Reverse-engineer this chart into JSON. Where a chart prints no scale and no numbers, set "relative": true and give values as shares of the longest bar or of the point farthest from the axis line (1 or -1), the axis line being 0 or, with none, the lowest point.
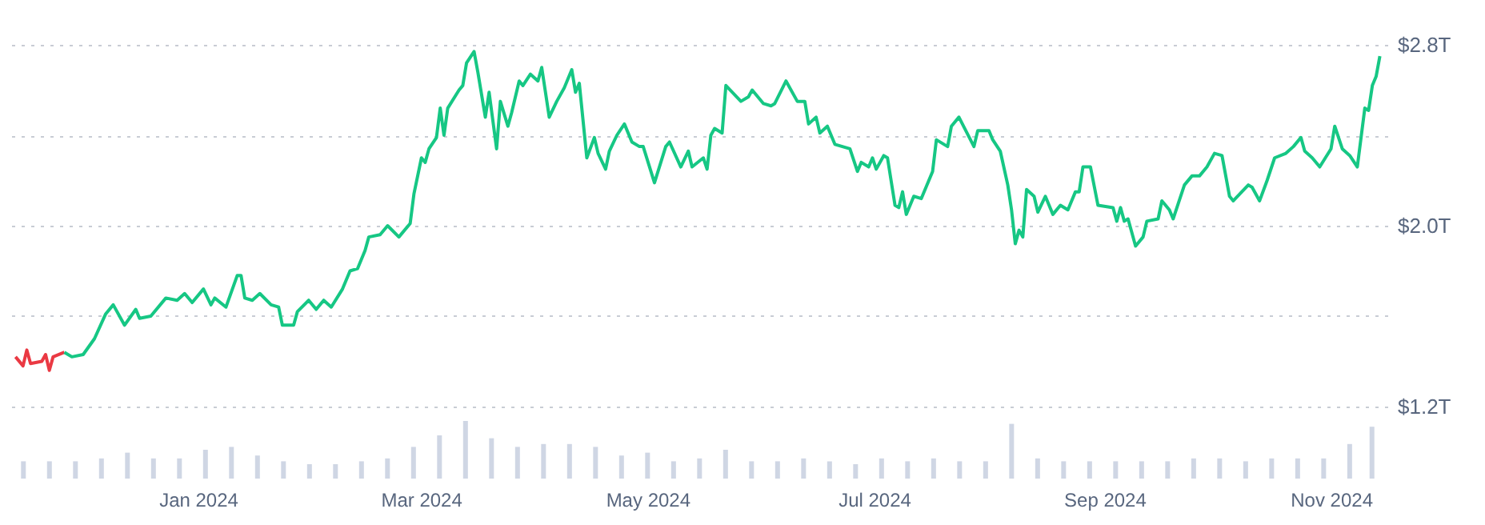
{
  "chart_data": [
    {
      "type": "line",
      "xlim": [
        "2023-11-13",
        "2024-11-14"
      ],
      "ylim": [
        1.2,
        2.8
      ],
      "yticks": [
        {
          "value": 1.2,
          "label": "$1.2T"
        },
        {
          "value": 1.6,
          "label": null
        },
        {
          "value": 2.0,
          "label": "$2.0T"
        },
        {
          "value": 2.4,
          "label": null
        },
        {
          "value": 2.8,
          "label": "$2.8T"
        }
      ],
      "grid": "y",
      "tick_labels": "y",
      "series": [
        {
          "color": "#ea3943",
          "x": [
            "2023-11-15",
            "2023-11-17",
            "2023-11-18",
            "2023-11-19",
            "2023-11-22",
            "2023-11-23",
            "2023-11-24",
            "2023-11-25",
            "2023-11-28"
          ],
          "values": [
            1.42,
            1.38,
            1.45,
            1.39,
            1.4,
            1.43,
            1.36,
            1.42,
            1.44
          ]
        },
        {
          "color": "#16c784",
          "x": [
            "2023-11-28",
            "2023-11-30",
            "2023-12-03",
            "2023-12-06",
            "2023-12-09",
            "2023-12-11",
            "2023-12-14",
            "2023-12-17",
            "2023-12-18",
            "2023-12-21",
            "2023-12-25",
            "2023-12-28",
            "2023-12-30",
            "2024-01-01",
            "2024-01-04",
            "2024-01-06",
            "2024-01-07",
            "2024-01-10",
            "2024-01-13",
            "2024-01-14",
            "2024-01-15",
            "2024-01-17",
            "2024-01-19",
            "2024-01-22",
            "2024-01-24",
            "2024-01-25",
            "2024-01-28",
            "2024-01-29",
            "2024-02-01",
            "2024-02-03",
            "2024-02-05",
            "2024-02-07",
            "2024-02-10",
            "2024-02-12",
            "2024-02-14",
            "2024-02-16",
            "2024-02-17",
            "2024-02-20",
            "2024-02-22",
            "2024-02-25",
            "2024-02-28",
            "2024-02-29",
            "2024-03-02",
            "2024-03-03",
            "2024-03-04",
            "2024-03-06",
            "2024-03-07",
            "2024-03-08",
            "2024-03-09",
            "2024-03-12",
            "2024-03-13",
            "2024-03-14",
            "2024-03-16",
            "2024-03-17",
            "2024-03-19",
            "2024-03-20",
            "2024-03-22",
            "2024-03-23",
            "2024-03-25",
            "2024-03-26",
            "2024-03-28",
            "2024-03-29",
            "2024-03-31",
            "2024-04-02",
            "2024-04-03",
            "2024-04-05",
            "2024-04-07",
            "2024-04-09",
            "2024-04-11",
            "2024-04-12",
            "2024-04-13",
            "2024-04-15",
            "2024-04-17",
            "2024-04-18",
            "2024-04-20",
            "2024-04-21",
            "2024-04-23",
            "2024-04-25",
            "2024-04-27",
            "2024-04-29",
            "2024-04-30",
            "2024-05-03",
            "2024-05-06",
            "2024-05-07",
            "2024-05-10",
            "2024-05-12",
            "2024-05-13",
            "2024-05-16",
            "2024-05-17",
            "2024-05-18",
            "2024-05-19",
            "2024-05-21",
            "2024-05-22",
            "2024-05-26",
            "2024-05-28",
            "2024-05-29",
            "2024-06-01",
            "2024-06-03",
            "2024-06-04",
            "2024-06-07",
            "2024-06-10",
            "2024-06-12",
            "2024-06-13",
            "2024-06-15",
            "2024-06-16",
            "2024-06-18",
            "2024-06-20",
            "2024-06-24",
            "2024-06-26",
            "2024-06-27",
            "2024-06-29",
            "2024-06-30",
            "2024-07-01",
            "2024-07-03",
            "2024-07-04",
            "2024-07-06",
            "2024-07-07",
            "2024-07-08",
            "2024-07-09",
            "2024-07-11",
            "2024-07-13",
            "2024-07-16",
            "2024-07-17",
            "2024-07-20",
            "2024-07-21",
            "2024-07-23",
            "2024-07-27",
            "2024-07-28",
            "2024-07-31",
            "2024-08-01",
            "2024-08-03",
            "2024-08-05",
            "2024-08-06",
            "2024-08-07",
            "2024-08-08",
            "2024-08-09",
            "2024-08-10",
            "2024-08-12",
            "2024-08-13",
            "2024-08-15",
            "2024-08-17",
            "2024-08-19",
            "2024-08-21",
            "2024-08-23",
            "2024-08-24",
            "2024-08-25",
            "2024-08-27",
            "2024-08-29",
            "2024-09-02",
            "2024-09-03",
            "2024-09-04",
            "2024-09-05",
            "2024-09-06",
            "2024-09-08",
            "2024-09-10",
            "2024-09-11",
            "2024-09-14",
            "2024-09-15",
            "2024-09-17",
            "2024-09-18",
            "2024-09-21",
            "2024-09-23",
            "2024-09-25",
            "2024-09-27",
            "2024-09-29",
            "2024-10-01",
            "2024-10-03",
            "2024-10-04",
            "2024-10-08",
            "2024-10-09",
            "2024-10-11",
            "2024-10-13",
            "2024-10-15",
            "2024-10-18",
            "2024-10-20",
            "2024-10-22",
            "2024-10-23",
            "2024-10-25",
            "2024-10-27",
            "2024-10-30",
            "2024-10-31",
            "2024-11-02",
            "2024-11-04",
            "2024-11-06",
            "2024-11-08",
            "2024-11-09",
            "2024-11-10",
            "2024-11-11",
            "2024-11-12"
          ],
          "values": [
            1.44,
            1.42,
            1.43,
            1.5,
            1.61,
            1.65,
            1.56,
            1.63,
            1.59,
            1.6,
            1.68,
            1.67,
            1.7,
            1.66,
            1.72,
            1.65,
            1.68,
            1.64,
            1.78,
            1.78,
            1.68,
            1.67,
            1.7,
            1.65,
            1.64,
            1.56,
            1.56,
            1.62,
            1.67,
            1.63,
            1.67,
            1.64,
            1.72,
            1.8,
            1.81,
            1.89,
            1.95,
            1.96,
            2.0,
            1.95,
            2.01,
            2.14,
            2.3,
            2.28,
            2.34,
            2.39,
            2.52,
            2.4,
            2.52,
            2.6,
            2.62,
            2.72,
            2.77,
            2.68,
            2.48,
            2.59,
            2.34,
            2.55,
            2.44,
            2.5,
            2.64,
            2.62,
            2.67,
            2.64,
            2.7,
            2.48,
            2.55,
            2.61,
            2.69,
            2.59,
            2.63,
            2.3,
            2.39,
            2.32,
            2.25,
            2.33,
            2.4,
            2.45,
            2.37,
            2.35,
            2.35,
            2.19,
            2.35,
            2.37,
            2.26,
            2.33,
            2.26,
            2.3,
            2.25,
            2.4,
            2.43,
            2.41,
            2.62,
            2.55,
            2.57,
            2.6,
            2.54,
            2.53,
            2.54,
            2.64,
            2.55,
            2.55,
            2.45,
            2.48,
            2.41,
            2.44,
            2.36,
            2.34,
            2.24,
            2.28,
            2.26,
            2.3,
            2.25,
            2.31,
            2.3,
            2.09,
            2.08,
            2.15,
            2.05,
            2.13,
            2.12,
            2.24,
            2.38,
            2.35,
            2.44,
            2.48,
            2.35,
            2.42,
            2.42,
            2.38,
            2.33,
            2.18,
            2.07,
            1.92,
            1.98,
            1.95,
            2.16,
            2.13,
            2.06,
            2.13,
            2.05,
            2.09,
            2.07,
            2.15,
            2.15,
            2.26,
            2.26,
            2.09,
            2.08,
            2.02,
            2.08,
            2.02,
            2.03,
            1.91,
            1.95,
            2.02,
            2.03,
            2.11,
            2.07,
            2.03,
            2.18,
            2.22,
            2.22,
            2.26,
            2.32,
            2.31,
            2.13,
            2.11,
            2.18,
            2.17,
            2.11,
            2.2,
            2.3,
            2.32,
            2.35,
            2.39,
            2.33,
            2.3,
            2.26,
            2.34,
            2.44,
            2.34,
            2.31,
            2.26,
            2.52,
            2.51,
            2.62,
            2.66,
            2.75
          ]
        }
      ]
    },
    {
      "type": "bar",
      "relative": true,
      "color": "#cfd6e4",
      "xlim": [
        "2023-11-13",
        "2024-11-14"
      ],
      "xticks": [
        {
          "value": "2024-01-01",
          "label": "Jan 2024"
        },
        {
          "value": "2024-03-01",
          "label": "Mar 2024"
        },
        {
          "value": "2024-05-01",
          "label": "May 2024"
        },
        {
          "value": "2024-07-01",
          "label": "Jul 2024"
        },
        {
          "value": "2024-09-01",
          "label": "Sep 2024"
        },
        {
          "value": "2024-11-01",
          "label": "Nov 2024"
        }
      ],
      "tick_labels": "x",
      "x": [
        "2023-11-15",
        "2023-11-22",
        "2023-11-29",
        "2023-12-06",
        "2023-12-13",
        "2023-12-20",
        "2023-12-27",
        "2024-01-03",
        "2024-01-10",
        "2024-01-17",
        "2024-01-24",
        "2024-01-31",
        "2024-02-07",
        "2024-02-14",
        "2024-02-21",
        "2024-02-28",
        "2024-03-06",
        "2024-03-13",
        "2024-03-20",
        "2024-03-27",
        "2024-04-03",
        "2024-04-10",
        "2024-04-17",
        "2024-04-24",
        "2024-05-01",
        "2024-05-08",
        "2024-05-15",
        "2024-05-22",
        "2024-05-29",
        "2024-06-05",
        "2024-06-12",
        "2024-06-19",
        "2024-06-26",
        "2024-07-03",
        "2024-07-10",
        "2024-07-17",
        "2024-07-24",
        "2024-07-31",
        "2024-08-07",
        "2024-08-14",
        "2024-08-21",
        "2024-08-28",
        "2024-09-04",
        "2024-09-11",
        "2024-09-18",
        "2024-09-25",
        "2024-10-02",
        "2024-10-09",
        "2024-10-16",
        "2024-10-23",
        "2024-10-30",
        "2024-11-06",
        "2024-11-12"
      ],
      "values": [
        0.3,
        0.3,
        0.3,
        0.35,
        0.45,
        0.35,
        0.35,
        0.5,
        0.55,
        0.4,
        0.3,
        0.25,
        0.25,
        0.3,
        0.35,
        0.55,
        0.75,
        1,
        0.7,
        0.55,
        0.6,
        0.6,
        0.55,
        0.4,
        0.45,
        0.3,
        0.35,
        0.5,
        0.3,
        0.3,
        0.35,
        0.3,
        0.25,
        0.35,
        0.3,
        0.35,
        0.3,
        0.3,
        0.95,
        0.35,
        0.3,
        0.3,
        0.3,
        0.3,
        0.3,
        0.35,
        0.35,
        0.3,
        0.35,
        0.35,
        0.35,
        0.6,
        0.9
      ]
    }
  ]
}
